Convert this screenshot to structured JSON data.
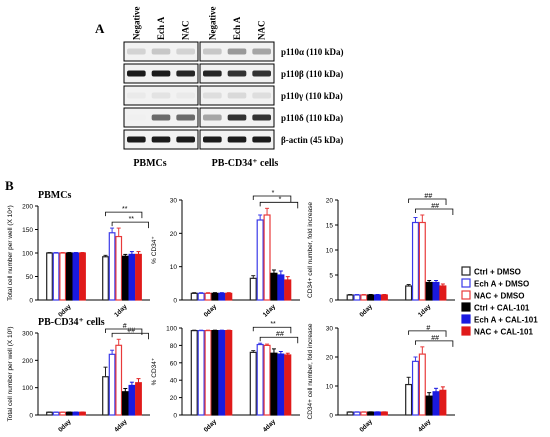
{
  "figure": {
    "panel_a_label": "A",
    "panel_b_label": "B",
    "blot_conditions": [
      "Negative",
      "Ech A",
      "NAC"
    ],
    "blot_proteins": [
      "p110α (110 kDa)",
      "p110β (110 kDa)",
      "p110γ (110 kDa)",
      "p110δ (110 kDa)",
      "β-actin (45 kDa)"
    ],
    "blot_intensity": [
      [
        [
          0.15,
          0.2,
          0.15
        ],
        [
          0.2,
          0.4,
          0.35
        ]
      ],
      [
        [
          0.95,
          0.95,
          0.9
        ],
        [
          0.9,
          0.85,
          0.85
        ]
      ],
      [
        [
          0.05,
          0.08,
          0.05
        ],
        [
          0.1,
          0.12,
          0.1
        ]
      ],
      [
        [
          0.02,
          0.6,
          0.6
        ],
        [
          0.35,
          0.85,
          0.85
        ]
      ],
      [
        [
          0.95,
          0.95,
          0.95
        ],
        [
          0.95,
          0.95,
          0.95
        ]
      ]
    ],
    "cell_groups": [
      "PBMCs",
      "PB-CD34⁺ cells"
    ],
    "legend": [
      "Ctrl + DMSO",
      "Ech A + DMSO",
      "NAC + DMSO",
      "Ctrl + CAL-101",
      "Ech A + CAL-101",
      "NAC + CAL-101"
    ],
    "series_colors": [
      "#222222",
      "#3a3ae8",
      "#e83a3a",
      "#000000",
      "#1a1ae0",
      "#e01a1a"
    ]
  },
  "chart_data": [
    {
      "type": "bar",
      "row_title": "PBMCs",
      "ylabel": "Total cell number per well (X 10⁴)",
      "categories": [
        "0day",
        "1day"
      ],
      "ylim": [
        0,
        200
      ],
      "yticks": [
        "0",
        "50",
        "100",
        "150",
        "200"
      ],
      "series": [
        {
          "name": "Ctrl + DMSO",
          "values": [
            100,
            92
          ],
          "err": [
            1,
            3
          ]
        },
        {
          "name": "Ech A + DMSO",
          "values": [
            100,
            143
          ],
          "err": [
            1,
            10
          ]
        },
        {
          "name": "NAC + DMSO",
          "values": [
            100,
            135
          ],
          "err": [
            1,
            18
          ]
        },
        {
          "name": "Ctrl + CAL-101",
          "values": [
            100,
            93
          ],
          "err": [
            1,
            4
          ]
        },
        {
          "name": "Ech A + CAL-101",
          "values": [
            100,
            97
          ],
          "err": [
            1,
            6
          ]
        },
        {
          "name": "NAC + CAL-101",
          "values": [
            100,
            97
          ],
          "err": [
            1,
            6
          ]
        }
      ],
      "annotations": [
        "**",
        "**"
      ]
    },
    {
      "type": "bar",
      "ylabel": "% CD34⁺",
      "categories": [
        "0day",
        "1day"
      ],
      "ylim": [
        0,
        30
      ],
      "yticks": [
        "0",
        "10",
        "20",
        "30"
      ],
      "series": [
        {
          "name": "Ctrl + DMSO",
          "values": [
            2,
            6.5
          ],
          "err": [
            0.2,
            0.8
          ]
        },
        {
          "name": "Ech A + DMSO",
          "values": [
            2,
            24
          ],
          "err": [
            0.2,
            1.5
          ]
        },
        {
          "name": "NAC + DMSO",
          "values": [
            2,
            25.5
          ],
          "err": [
            0.2,
            2.0
          ]
        },
        {
          "name": "Ctrl + CAL-101",
          "values": [
            2,
            8
          ],
          "err": [
            0.2,
            1
          ]
        },
        {
          "name": "Ech A + CAL-101",
          "values": [
            2,
            7.5
          ],
          "err": [
            0.2,
            1.2
          ]
        },
        {
          "name": "NAC + CAL-101",
          "values": [
            2,
            6
          ],
          "err": [
            0.2,
            1
          ]
        }
      ],
      "annotations": [
        "*",
        "*"
      ]
    },
    {
      "type": "bar",
      "ylabel": "CD34+ cell number, fold increase",
      "categories": [
        "0day",
        "1day"
      ],
      "ylim": [
        0,
        20
      ],
      "yticks": [
        "0",
        "5",
        "10",
        "15",
        "20"
      ],
      "series": [
        {
          "name": "Ctrl + DMSO",
          "values": [
            1,
            2.8
          ],
          "err": [
            0.1,
            0.3
          ]
        },
        {
          "name": "Ech A + DMSO",
          "values": [
            1,
            15.5
          ],
          "err": [
            0.1,
            1
          ]
        },
        {
          "name": "NAC + DMSO",
          "values": [
            1,
            15.5
          ],
          "err": [
            0.1,
            1.5
          ]
        },
        {
          "name": "Ctrl + CAL-101",
          "values": [
            1,
            3.5
          ],
          "err": [
            0.1,
            0.4
          ]
        },
        {
          "name": "Ech A + CAL-101",
          "values": [
            1,
            3.5
          ],
          "err": [
            0.1,
            0.4
          ]
        },
        {
          "name": "NAC + CAL-101",
          "values": [
            1,
            2.8
          ],
          "err": [
            0.1,
            0.4
          ]
        }
      ],
      "annotations": [
        "##",
        "##"
      ]
    },
    {
      "type": "bar",
      "row_title": "PB-CD34⁺ cells",
      "ylabel": "Total cell number per well (X 10³)",
      "categories": [
        "0day",
        "4day"
      ],
      "ylim": [
        0,
        300
      ],
      "yticks": [
        "0",
        "100",
        "200",
        "300"
      ],
      "series": [
        {
          "name": "Ctrl + DMSO",
          "values": [
            10,
            140
          ],
          "err": [
            1,
            35
          ]
        },
        {
          "name": "Ech A + DMSO",
          "values": [
            10,
            222
          ],
          "err": [
            1,
            15
          ]
        },
        {
          "name": "NAC + DMSO",
          "values": [
            10,
            255
          ],
          "err": [
            1,
            22
          ]
        },
        {
          "name": "Ctrl + CAL-101",
          "values": [
            10,
            85
          ],
          "err": [
            1,
            12
          ]
        },
        {
          "name": "Ech A + CAL-101",
          "values": [
            10,
            108
          ],
          "err": [
            1,
            12
          ]
        },
        {
          "name": "NAC + CAL-101",
          "values": [
            10,
            118
          ],
          "err": [
            1,
            15
          ]
        }
      ],
      "annotations": [
        "#",
        "##"
      ]
    },
    {
      "type": "bar",
      "ylabel": "% CD34⁺",
      "categories": [
        "0day",
        "4day"
      ],
      "ylim": [
        0,
        100
      ],
      "yticks": [
        "0",
        "20",
        "40",
        "60",
        "80",
        "100"
      ],
      "series": [
        {
          "name": "Ctrl + DMSO",
          "values": [
            97,
            72
          ],
          "err": [
            0.5,
            2
          ]
        },
        {
          "name": "Ech A + DMSO",
          "values": [
            97,
            81
          ],
          "err": [
            0.5,
            1.5
          ]
        },
        {
          "name": "NAC + DMSO",
          "values": [
            97,
            80
          ],
          "err": [
            0.5,
            1.5
          ]
        },
        {
          "name": "Ctrl + CAL-101",
          "values": [
            97,
            71
          ],
          "err": [
            0.5,
            5
          ]
        },
        {
          "name": "Ech A + CAL-101",
          "values": [
            97,
            70
          ],
          "err": [
            0.5,
            3
          ]
        },
        {
          "name": "NAC + CAL-101",
          "values": [
            97,
            69
          ],
          "err": [
            0.5,
            2
          ]
        }
      ],
      "annotations": [
        "**",
        "##"
      ]
    },
    {
      "type": "bar",
      "ylabel": "CD34+ cell number, fold increase",
      "categories": [
        "0day",
        "4day"
      ],
      "ylim": [
        0,
        30
      ],
      "yticks": [
        "0",
        "10",
        "20",
        "30"
      ],
      "series": [
        {
          "name": "Ctrl + DMSO",
          "values": [
            1,
            10.5
          ],
          "err": [
            0.1,
            2.5
          ]
        },
        {
          "name": "Ech A + DMSO",
          "values": [
            1,
            18.5
          ],
          "err": [
            0.1,
            1.5
          ]
        },
        {
          "name": "NAC + DMSO",
          "values": [
            1,
            21
          ],
          "err": [
            0.1,
            2.5
          ]
        },
        {
          "name": "Ctrl + CAL-101",
          "values": [
            1,
            6.5
          ],
          "err": [
            0.1,
            1.2
          ]
        },
        {
          "name": "Ech A + CAL-101",
          "values": [
            1,
            8
          ],
          "err": [
            0.1,
            1.2
          ]
        },
        {
          "name": "NAC + CAL-101",
          "values": [
            1,
            8.5
          ],
          "err": [
            0.1,
            1.2
          ]
        }
      ],
      "annotations": [
        "#",
        "##"
      ]
    }
  ]
}
